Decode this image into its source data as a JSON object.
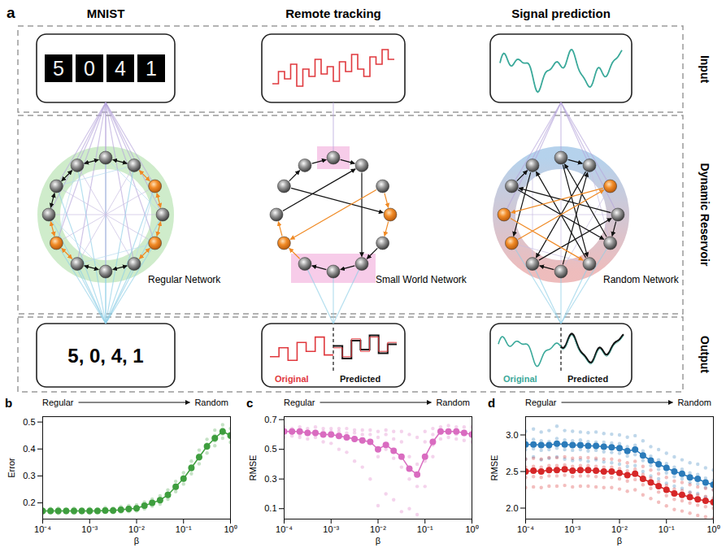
{
  "diagram": {
    "panel_label": "a",
    "rows": [
      "Input",
      "Dynamic Reservoir",
      "Output"
    ],
    "columns": [
      {
        "title": "MNIST",
        "input_digits": [
          "5",
          "0",
          "4",
          "1"
        ],
        "network": "Regular Network",
        "output_text": "5, 0, 4, 1"
      },
      {
        "title": "Remote tracking",
        "network": "Small World Network",
        "output_legend": [
          "Original",
          "Predicted"
        ]
      },
      {
        "title": "Signal prediction",
        "network": "Random Network",
        "output_legend": [
          "Original",
          "Predicted"
        ]
      }
    ]
  },
  "chart_data": [
    {
      "panel_label": "b",
      "type": "scatter",
      "annotation": {
        "left": "Regular",
        "right": "Random"
      },
      "x_label": "β",
      "y_label": "Error",
      "log": "x",
      "xlim": [
        0.0001,
        1
      ],
      "xticks": [
        {
          "value": 0.0001,
          "label": "10⁻⁴"
        },
        {
          "value": 0.001,
          "label": "10⁻³"
        },
        {
          "value": 0.01,
          "label": "10⁻²"
        },
        {
          "value": 0.1,
          "label": "10⁻¹"
        },
        {
          "value": 1,
          "label": "10⁰"
        }
      ],
      "ylim": [
        0.14,
        0.52
      ],
      "yticks": [
        0.2,
        0.3,
        0.4,
        0.5
      ],
      "x": [
        0.0001,
        0.000147,
        0.000215,
        0.000316,
        0.000464,
        0.000681,
        0.001,
        0.00147,
        0.00215,
        0.00316,
        0.00464,
        0.00681,
        0.01,
        0.0147,
        0.0215,
        0.0316,
        0.0464,
        0.0681,
        0.1,
        0.147,
        0.215,
        0.316,
        0.464,
        0.681,
        1
      ],
      "series": [
        {
          "color": "#3e9e3e",
          "values": [
            0.17,
            0.17,
            0.17,
            0.17,
            0.17,
            0.17,
            0.17,
            0.17,
            0.172,
            0.172,
            0.175,
            0.178,
            0.18,
            0.19,
            0.2,
            0.21,
            0.23,
            0.26,
            0.29,
            0.33,
            0.37,
            0.41,
            0.44,
            0.465,
            0.45
          ],
          "trials": [
            [
              0.162,
              0.167,
              0.173,
              0.178
            ],
            [
              0.163,
              0.168,
              0.172,
              0.179
            ],
            [
              0.161,
              0.168,
              0.174,
              0.18
            ],
            [
              0.164,
              0.169,
              0.173,
              0.177
            ],
            [
              0.162,
              0.167,
              0.172,
              0.18
            ],
            [
              0.163,
              0.169,
              0.174,
              0.178
            ],
            [
              0.162,
              0.168,
              0.173,
              0.179
            ],
            [
              0.164,
              0.168,
              0.172,
              0.178
            ],
            [
              0.165,
              0.17,
              0.175,
              0.182
            ],
            [
              0.164,
              0.169,
              0.176,
              0.181
            ],
            [
              0.166,
              0.172,
              0.178,
              0.186
            ],
            [
              0.168,
              0.175,
              0.182,
              0.19
            ],
            [
              0.17,
              0.177,
              0.185,
              0.193
            ],
            [
              0.178,
              0.186,
              0.194,
              0.203
            ],
            [
              0.188,
              0.196,
              0.204,
              0.214
            ],
            [
              0.196,
              0.206,
              0.215,
              0.226
            ],
            [
              0.214,
              0.225,
              0.236,
              0.248
            ],
            [
              0.242,
              0.254,
              0.266,
              0.28
            ],
            [
              0.27,
              0.284,
              0.297,
              0.312
            ],
            [
              0.308,
              0.322,
              0.338,
              0.355
            ],
            [
              0.345,
              0.362,
              0.378,
              0.396
            ],
            [
              0.385,
              0.402,
              0.418,
              0.436
            ],
            [
              0.412,
              0.43,
              0.45,
              0.47
            ],
            [
              0.44,
              0.456,
              0.474,
              0.49
            ],
            [
              0.425,
              0.442,
              0.458,
              0.476
            ]
          ]
        }
      ]
    },
    {
      "panel_label": "c",
      "type": "scatter",
      "annotation": {
        "left": "Regular",
        "right": "Random"
      },
      "x_label": "β",
      "y_label": "RMSE",
      "log": "x",
      "xlim": [
        0.0001,
        1
      ],
      "xticks": [
        {
          "value": 0.0001,
          "label": "10⁻⁴"
        },
        {
          "value": 0.001,
          "label": "10⁻³"
        },
        {
          "value": 0.01,
          "label": "10⁻²"
        },
        {
          "value": 0.1,
          "label": "10⁻¹"
        },
        {
          "value": 1,
          "label": "10⁰"
        }
      ],
      "ylim": [
        0.03,
        0.72
      ],
      "yticks": [
        0.1,
        0.3,
        0.5,
        0.7
      ],
      "x": [
        0.0001,
        0.000147,
        0.000215,
        0.000316,
        0.000464,
        0.000681,
        0.001,
        0.00147,
        0.00215,
        0.00316,
        0.00464,
        0.00681,
        0.01,
        0.0147,
        0.0215,
        0.0316,
        0.0464,
        0.0681,
        0.1,
        0.147,
        0.215,
        0.316,
        0.464,
        0.681,
        1
      ],
      "series": [
        {
          "color": "#d96cc0",
          "values": [
            0.62,
            0.62,
            0.62,
            0.61,
            0.61,
            0.6,
            0.6,
            0.59,
            0.58,
            0.57,
            0.56,
            0.55,
            0.5,
            0.53,
            0.49,
            0.45,
            0.37,
            0.33,
            0.45,
            0.55,
            0.62,
            0.62,
            0.62,
            0.61,
            0.6
          ],
          "trials": [
            [
              0.58,
              0.61,
              0.63,
              0.65
            ],
            [
              0.59,
              0.61,
              0.63,
              0.64
            ],
            [
              0.58,
              0.6,
              0.63,
              0.65
            ],
            [
              0.57,
              0.6,
              0.62,
              0.64
            ],
            [
              0.58,
              0.6,
              0.62,
              0.65
            ],
            [
              0.55,
              0.59,
              0.62,
              0.64
            ],
            [
              0.54,
              0.6,
              0.62,
              0.64
            ],
            [
              0.5,
              0.58,
              0.62,
              0.64
            ],
            [
              0.48,
              0.57,
              0.61,
              0.64
            ],
            [
              0.42,
              0.56,
              0.61,
              0.63
            ],
            [
              0.38,
              0.55,
              0.6,
              0.63
            ],
            [
              0.3,
              0.55,
              0.6,
              0.63
            ],
            [
              0.12,
              0.45,
              0.58,
              0.62
            ],
            [
              0.2,
              0.5,
              0.6,
              0.63
            ],
            [
              0.16,
              0.44,
              0.57,
              0.62
            ],
            [
              0.08,
              0.38,
              0.55,
              0.62
            ],
            [
              0.1,
              0.3,
              0.45,
              0.6
            ],
            [
              0.06,
              0.25,
              0.4,
              0.58
            ],
            [
              0.25,
              0.42,
              0.55,
              0.62
            ],
            [
              0.45,
              0.53,
              0.6,
              0.64
            ],
            [
              0.57,
              0.61,
              0.63,
              0.65
            ],
            [
              0.58,
              0.61,
              0.63,
              0.66
            ],
            [
              0.57,
              0.6,
              0.63,
              0.65
            ],
            [
              0.56,
              0.6,
              0.62,
              0.65
            ],
            [
              0.55,
              0.59,
              0.62,
              0.65
            ]
          ]
        }
      ]
    },
    {
      "panel_label": "d",
      "type": "scatter",
      "annotation": {
        "left": "Regular",
        "right": "Random"
      },
      "x_label": "β",
      "y_label": "RMSE",
      "log": "x",
      "xlim": [
        0.0001,
        1
      ],
      "xticks": [
        {
          "value": 0.0001,
          "label": "10⁻⁴"
        },
        {
          "value": 0.001,
          "label": "10⁻³"
        },
        {
          "value": 0.01,
          "label": "10⁻²"
        },
        {
          "value": 0.1,
          "label": "10⁻¹"
        },
        {
          "value": 1,
          "label": "10⁰"
        }
      ],
      "ylim": [
        1.85,
        3.25
      ],
      "yticks": [
        {
          "value": 2,
          "label": "2.0"
        },
        2.5,
        {
          "value": 3,
          "label": "3.0"
        }
      ],
      "x": [
        0.0001,
        0.000147,
        0.000215,
        0.000316,
        0.000464,
        0.000681,
        0.001,
        0.00147,
        0.00215,
        0.00316,
        0.00464,
        0.00681,
        0.01,
        0.0147,
        0.0215,
        0.0316,
        0.0464,
        0.0681,
        0.1,
        0.147,
        0.215,
        0.316,
        0.464,
        0.681,
        1
      ],
      "series": [
        {
          "color": "#2b7bba",
          "values": [
            2.87,
            2.87,
            2.86,
            2.86,
            2.88,
            2.87,
            2.86,
            2.86,
            2.85,
            2.85,
            2.84,
            2.83,
            2.82,
            2.78,
            2.8,
            2.72,
            2.65,
            2.6,
            2.55,
            2.5,
            2.47,
            2.42,
            2.4,
            2.35,
            2.32
          ],
          "trials": [
            [
              2.67,
              2.8,
              2.93,
              3.05
            ],
            [
              2.7,
              2.81,
              2.94,
              3.08
            ],
            [
              2.66,
              2.79,
              2.92,
              3.04
            ],
            [
              2.68,
              2.8,
              2.91,
              3.06
            ],
            [
              2.7,
              2.82,
              2.95,
              3.12
            ],
            [
              2.67,
              2.8,
              2.93,
              3.06
            ],
            [
              2.65,
              2.79,
              2.92,
              3.05
            ],
            [
              2.66,
              2.8,
              2.93,
              3.04
            ],
            [
              2.64,
              2.78,
              2.91,
              3.03
            ],
            [
              2.66,
              2.79,
              2.9,
              3.04
            ],
            [
              2.63,
              2.77,
              2.9,
              3.02
            ],
            [
              2.62,
              2.76,
              2.89,
              3.01
            ],
            [
              2.6,
              2.75,
              2.88,
              3.0
            ],
            [
              2.57,
              2.71,
              2.84,
              2.97
            ],
            [
              2.58,
              2.73,
              2.86,
              2.99
            ],
            [
              2.5,
              2.65,
              2.78,
              2.92
            ],
            [
              2.44,
              2.58,
              2.71,
              2.84
            ],
            [
              2.4,
              2.53,
              2.66,
              2.8
            ],
            [
              2.34,
              2.48,
              2.61,
              2.75
            ],
            [
              2.3,
              2.43,
              2.56,
              2.7
            ],
            [
              2.27,
              2.4,
              2.53,
              2.66
            ],
            [
              2.22,
              2.35,
              2.48,
              2.62
            ],
            [
              2.2,
              2.33,
              2.46,
              2.6
            ],
            [
              2.15,
              2.28,
              2.41,
              2.55
            ],
            [
              2.12,
              2.25,
              2.38,
              2.52
            ]
          ]
        },
        {
          "color": "#d62728",
          "values": [
            2.5,
            2.51,
            2.5,
            2.52,
            2.52,
            2.53,
            2.51,
            2.52,
            2.52,
            2.51,
            2.5,
            2.5,
            2.48,
            2.45,
            2.47,
            2.4,
            2.35,
            2.3,
            2.25,
            2.2,
            2.18,
            2.15,
            2.12,
            2.1,
            2.08
          ],
          "trials": [
            [
              2.28,
              2.42,
              2.56,
              2.67
            ],
            [
              2.29,
              2.43,
              2.57,
              2.68
            ],
            [
              2.28,
              2.42,
              2.56,
              2.67
            ],
            [
              2.3,
              2.44,
              2.58,
              2.69
            ],
            [
              2.3,
              2.44,
              2.58,
              2.69
            ],
            [
              2.31,
              2.45,
              2.59,
              2.7
            ],
            [
              2.29,
              2.43,
              2.57,
              2.68
            ],
            [
              2.3,
              2.44,
              2.58,
              2.69
            ],
            [
              2.3,
              2.44,
              2.58,
              2.69
            ],
            [
              2.29,
              2.43,
              2.57,
              2.68
            ],
            [
              2.28,
              2.42,
              2.56,
              2.67
            ],
            [
              2.28,
              2.42,
              2.56,
              2.67
            ],
            [
              2.26,
              2.4,
              2.54,
              2.65
            ],
            [
              2.23,
              2.37,
              2.51,
              2.62
            ],
            [
              2.25,
              2.39,
              2.53,
              2.64
            ],
            [
              2.18,
              2.32,
              2.46,
              2.57
            ],
            [
              2.13,
              2.27,
              2.41,
              2.52
            ],
            [
              2.08,
              2.22,
              2.36,
              2.47
            ],
            [
              2.03,
              2.17,
              2.31,
              2.42
            ],
            [
              1.98,
              2.12,
              2.26,
              2.37
            ],
            [
              1.96,
              2.1,
              2.24,
              2.35
            ],
            [
              1.93,
              2.07,
              2.21,
              2.32
            ],
            [
              1.9,
              2.04,
              2.18,
              2.29
            ],
            [
              1.88,
              2.02,
              2.16,
              2.27
            ],
            [
              1.86,
              2.0,
              2.14,
              2.25
            ]
          ]
        }
      ]
    }
  ]
}
